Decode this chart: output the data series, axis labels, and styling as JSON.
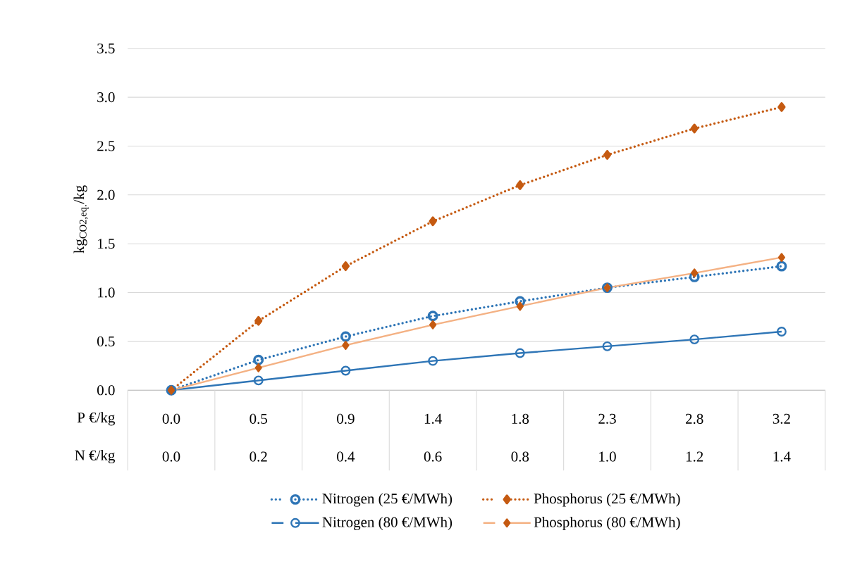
{
  "chart_data": {
    "type": "line",
    "ylabel": "kg$_{CO2,eq.}$/kg",
    "xlabel": "P  €/kg",
    "categories": [
      "0.0",
      "0.5",
      "0.9",
      "1.4",
      "1.8",
      "2.3",
      "2.8",
      "3.2"
    ],
    "annotations": [
      "N €/kg",
      "0.0",
      "0.2",
      "0.4",
      "0.6",
      "0.8",
      "1.0",
      "1.2",
      "1.4"
    ],
    "series": [
      {
        "name": "Nitrogen (25 €/MWh)",
        "color": "#2e75b6",
        "marker": "circle",
        "line_style": "dotted",
        "values": [
          0,
          0.31,
          0.55,
          0.76,
          0.91,
          1.05,
          1.16,
          1.27
        ]
      },
      {
        "name": "Phosphorus (25 €/MWh)",
        "color": "#c55a11",
        "marker": "diamond",
        "line_style": "dotted",
        "values": [
          0,
          0.71,
          1.27,
          1.73,
          2.1,
          2.41,
          2.68,
          2.9
        ]
      },
      {
        "name": "Nitrogen (80 €/MWh)",
        "color": "#2e75b6",
        "marker": "circle",
        "line_style": "solid",
        "values": [
          0,
          0.1,
          0.2,
          0.3,
          0.38,
          0.45,
          0.52,
          0.6
        ]
      },
      {
        "name": "Phosphorus (80 €/MWh)",
        "color": "#f4b183",
        "marker": "diamond",
        "line_style": "solid",
        "values": [
          0,
          0.23,
          0.46,
          0.67,
          0.86,
          1.05,
          1.2,
          1.36
        ]
      }
    ],
    "ylim": [
      0,
      3.5
    ],
    "yticks": [
      {
        "value": 0,
        "label": "0.0"
      },
      {
        "value": 0.5,
        "label": "0.5"
      },
      {
        "value": 1,
        "label": "1.0"
      },
      {
        "value": 1.5,
        "label": "1.5"
      },
      {
        "value": 2,
        "label": "2.0"
      },
      {
        "value": 2.5,
        "label": "2.5"
      },
      {
        "value": 3,
        "label": "3.0"
      },
      {
        "value": 3.5,
        "label": "3.5"
      }
    ],
    "grid": "y",
    "legend": "bottom"
  }
}
